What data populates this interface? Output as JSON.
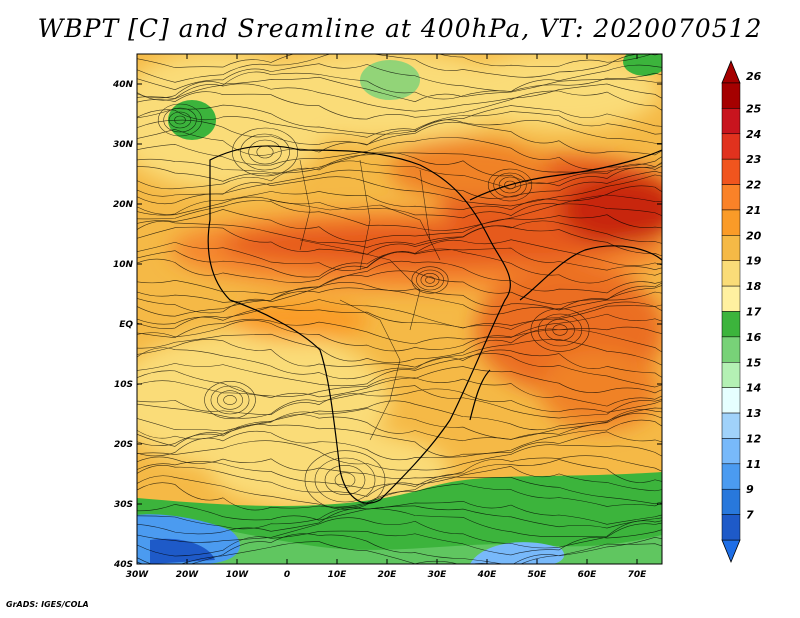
{
  "title": "WBPT [C] and Sreamline at 400hPa, VT: 2020070512",
  "credit": "GrADS: IGES/COLA",
  "map": {
    "lon_range": [
      -30,
      75
    ],
    "lat_range": [
      -40,
      45
    ],
    "lon_ticks": [
      {
        "value": -30,
        "label": "30W"
      },
      {
        "value": -20,
        "label": "20W"
      },
      {
        "value": -10,
        "label": "10W"
      },
      {
        "value": 0,
        "label": "0"
      },
      {
        "value": 10,
        "label": "10E"
      },
      {
        "value": 20,
        "label": "20E"
      },
      {
        "value": 30,
        "label": "30E"
      },
      {
        "value": 40,
        "label": "40E"
      },
      {
        "value": 50,
        "label": "50E"
      },
      {
        "value": 60,
        "label": "60E"
      },
      {
        "value": 70,
        "label": "70E"
      }
    ],
    "lat_ticks": [
      {
        "value": 40,
        "label": "40N"
      },
      {
        "value": 30,
        "label": "30N"
      },
      {
        "value": 20,
        "label": "20N"
      },
      {
        "value": 10,
        "label": "10N"
      },
      {
        "value": 0,
        "label": "EQ"
      },
      {
        "value": -10,
        "label": "10S"
      },
      {
        "value": -20,
        "label": "20S"
      },
      {
        "value": -30,
        "label": "30S"
      },
      {
        "value": -40,
        "label": "40S"
      }
    ]
  },
  "colorbar": {
    "levels": [
      {
        "label": "26",
        "color": "#a50000"
      },
      {
        "label": "25",
        "color": "#c8141e"
      },
      {
        "label": "24",
        "color": "#e1321e"
      },
      {
        "label": "23",
        "color": "#f0551e"
      },
      {
        "label": "22",
        "color": "#fa8228"
      },
      {
        "label": "21",
        "color": "#fa9b28"
      },
      {
        "label": "20",
        "color": "#f5b946"
      },
      {
        "label": "19",
        "color": "#fadc78"
      },
      {
        "label": "18",
        "color": "#fff0a0"
      },
      {
        "label": "17",
        "color": "#3cb43c"
      },
      {
        "label": "16",
        "color": "#78d278"
      },
      {
        "label": "15",
        "color": "#b4f0b4"
      },
      {
        "label": "14",
        "color": "#e6ffff"
      },
      {
        "label": "13",
        "color": "#a0d2fa"
      },
      {
        "label": "12",
        "color": "#78b9fa"
      },
      {
        "label": "11",
        "color": "#4b9bf0"
      },
      {
        "label": "9",
        "color": "#2878dc"
      },
      {
        "label": "7",
        "color": "#1e5ac8"
      }
    ],
    "tip_top_color": "#a50000",
    "tip_bottom_color": "#1e6ee6"
  },
  "colors": {
    "warm_core": "#e1461e",
    "hot_core": "#c8280f",
    "mid": "#f5a032",
    "pale": "#fad278",
    "green": "#3cb43c",
    "blue": "#2878dc"
  }
}
